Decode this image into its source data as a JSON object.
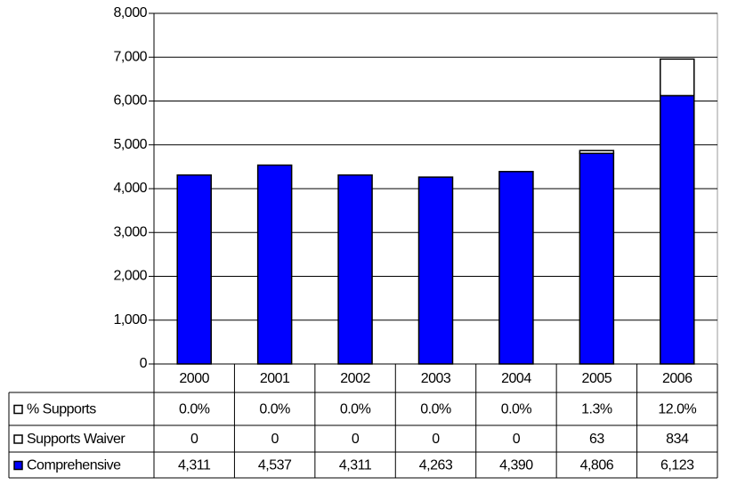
{
  "chart_data": {
    "type": "bar",
    "stacked": true,
    "categories": [
      "2000",
      "2001",
      "2002",
      "2003",
      "2004",
      "2005",
      "2006"
    ],
    "series": [
      {
        "name": "Comprehensive",
        "color": "#0000ff",
        "plot": true,
        "values": [
          4311,
          4537,
          4311,
          4263,
          4390,
          4806,
          6123
        ],
        "value_labels": [
          "4,311",
          "4,537",
          "4,311",
          "4,263",
          "4,390",
          "4,806",
          "6,123"
        ]
      },
      {
        "name": "Supports Waiver",
        "color": "#ffffff",
        "plot": true,
        "values": [
          0,
          0,
          0,
          0,
          0,
          63,
          834
        ]
      },
      {
        "name": "% Supports",
        "color": "#ffffff",
        "plot": false,
        "values": [
          0,
          0,
          0,
          0,
          0,
          1.3,
          12.0
        ],
        "value_labels": [
          "0.0%",
          "0.0%",
          "0.0%",
          "0.0%",
          "0.0%",
          "1.3%",
          "12.0%"
        ]
      }
    ],
    "ylim": [
      0,
      8000
    ],
    "yticks": [
      0,
      {
        "value": 1000,
        "label": "1,000"
      },
      {
        "value": 2000,
        "label": "2,000"
      },
      {
        "value": 3000,
        "label": "3,000"
      },
      {
        "value": 4000,
        "label": "4,000"
      },
      {
        "value": 5000,
        "label": "5,000"
      },
      {
        "value": 6000,
        "label": "6,000"
      },
      {
        "value": 7000,
        "label": "7,000"
      },
      {
        "value": 8000,
        "label": "8,000"
      }
    ],
    "grid": true
  }
}
